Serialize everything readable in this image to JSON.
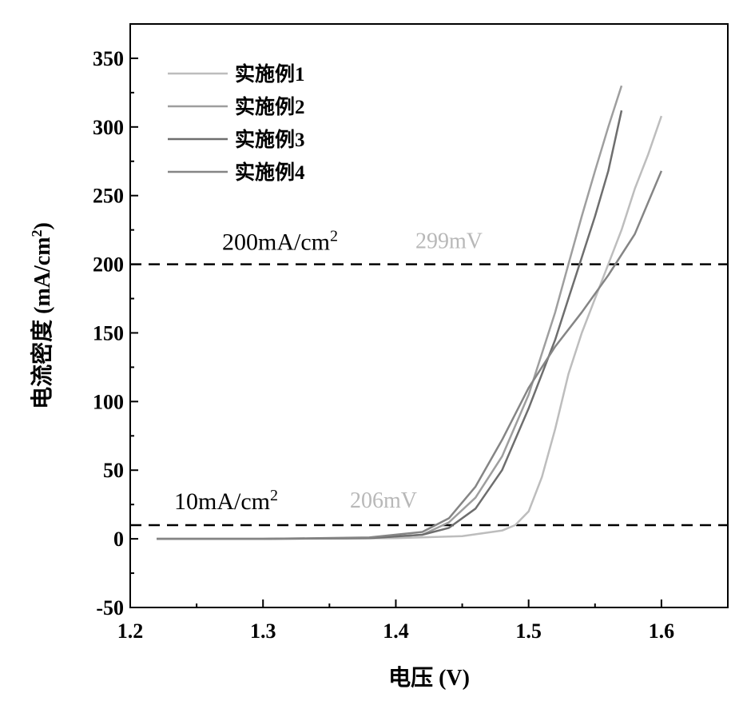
{
  "chart_data": {
    "type": "line",
    "xlabel": "电压 (V)",
    "ylabel": "电流密度 (mA/cm²)",
    "ylabel_main": "电流密度 (mA/cm",
    "ylabel_sup": "2",
    "ylabel_end": ")",
    "xlim": [
      1.2,
      1.65
    ],
    "ylim": [
      -50,
      375
    ],
    "xticks": [
      1.2,
      1.3,
      1.4,
      1.5,
      1.6
    ],
    "xtick_labels": [
      "1.2",
      "1.3",
      "1.4",
      "1.5",
      "1.6"
    ],
    "yticks": [
      -50,
      0,
      50,
      100,
      150,
      200,
      250,
      300,
      350
    ],
    "ytick_labels": [
      "-50",
      "0",
      "50",
      "100",
      "150",
      "200",
      "250",
      "300",
      "350"
    ],
    "grid": false,
    "legend_position": "top-left",
    "series": [
      {
        "name": "实施例1",
        "color": "#bdbdbd",
        "points": [
          [
            1.22,
            0
          ],
          [
            1.3,
            0
          ],
          [
            1.4,
            0.5
          ],
          [
            1.45,
            2
          ],
          [
            1.48,
            6
          ],
          [
            1.49,
            10
          ],
          [
            1.5,
            20
          ],
          [
            1.51,
            45
          ],
          [
            1.52,
            80
          ],
          [
            1.53,
            120
          ],
          [
            1.54,
            150
          ],
          [
            1.55,
            175
          ],
          [
            1.56,
            200
          ],
          [
            1.57,
            225
          ],
          [
            1.58,
            255
          ],
          [
            1.59,
            280
          ],
          [
            1.6,
            308
          ]
        ]
      },
      {
        "name": "实施例2",
        "color": "#9e9e9e",
        "points": [
          [
            1.22,
            0
          ],
          [
            1.3,
            0
          ],
          [
            1.38,
            0.5
          ],
          [
            1.42,
            3
          ],
          [
            1.44,
            12
          ],
          [
            1.46,
            30
          ],
          [
            1.48,
            60
          ],
          [
            1.5,
            105
          ],
          [
            1.51,
            135
          ],
          [
            1.52,
            165
          ],
          [
            1.53,
            200
          ],
          [
            1.54,
            235
          ],
          [
            1.55,
            268
          ],
          [
            1.56,
            300
          ],
          [
            1.57,
            330
          ]
        ]
      },
      {
        "name": "实施例3",
        "color": "#6e6e6e",
        "points": [
          [
            1.22,
            0
          ],
          [
            1.3,
            0
          ],
          [
            1.38,
            0.5
          ],
          [
            1.42,
            3
          ],
          [
            1.44,
            8
          ],
          [
            1.46,
            22
          ],
          [
            1.48,
            50
          ],
          [
            1.5,
            95
          ],
          [
            1.52,
            145
          ],
          [
            1.53,
            175
          ],
          [
            1.54,
            205
          ],
          [
            1.55,
            235
          ],
          [
            1.56,
            268
          ],
          [
            1.57,
            312
          ]
        ]
      },
      {
        "name": "实施例4",
        "color": "#858585",
        "points": [
          [
            1.22,
            0
          ],
          [
            1.3,
            0
          ],
          [
            1.38,
            1
          ],
          [
            1.42,
            5
          ],
          [
            1.44,
            15
          ],
          [
            1.46,
            38
          ],
          [
            1.48,
            72
          ],
          [
            1.5,
            110
          ],
          [
            1.52,
            140
          ],
          [
            1.54,
            165
          ],
          [
            1.56,
            192
          ],
          [
            1.58,
            222
          ],
          [
            1.6,
            268
          ]
        ]
      }
    ],
    "reference_lines": [
      {
        "y": 200,
        "label_main": "200mA/cm",
        "label_sup": "2",
        "overpotential": "299mV"
      },
      {
        "y": 10,
        "label_main": "10mA/cm",
        "label_sup": "2",
        "overpotential": "206mV"
      }
    ]
  }
}
